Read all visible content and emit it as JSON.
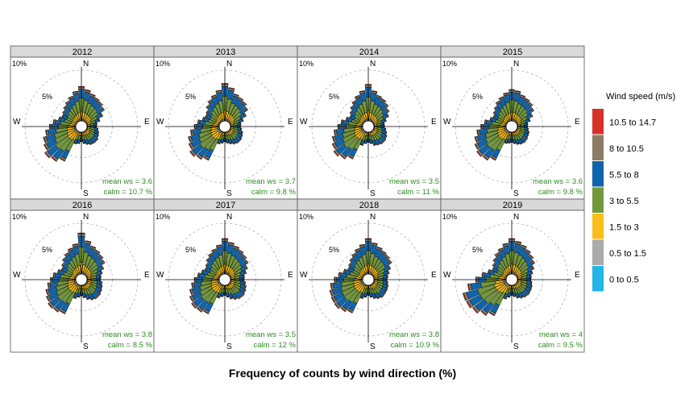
{
  "chart_data": {
    "type": "polar-stacked-bar (wind rose)",
    "xlabel": "Frequency of counts by wind direction (%)",
    "legend": {
      "title": "Wind speed (m/s)",
      "placement": "right",
      "bins": [
        {
          "label": "0 to 0.5",
          "color": "#22b5e6"
        },
        {
          "label": "0.5 to 1.5",
          "color": "#ababab"
        },
        {
          "label": "1.5 to 3",
          "color": "#fbbd19"
        },
        {
          "label": "3 to 5.5",
          "color": "#73983a"
        },
        {
          "label": "5.5 to 8",
          "color": "#0e64ad"
        },
        {
          "label": "8 to 10.5",
          "color": "#8c7c64"
        },
        {
          "label": "10.5 to 14.7",
          "color": "#d63228"
        }
      ]
    },
    "radial_axis": {
      "unit": "%",
      "ticks": [
        {
          "value": 5,
          "label": "5%"
        },
        {
          "value": 10,
          "label": "10%"
        }
      ],
      "max": 10
    },
    "compass_labels": {
      "N": "N",
      "E": "E",
      "S": "S",
      "W": "W"
    },
    "directions_deg": [
      0,
      10,
      20,
      30,
      40,
      50,
      60,
      70,
      80,
      90,
      100,
      110,
      120,
      130,
      140,
      150,
      160,
      170,
      180,
      190,
      200,
      210,
      220,
      230,
      240,
      250,
      260,
      270,
      280,
      290,
      300,
      310,
      320,
      330,
      340,
      350
    ],
    "panels": [
      {
        "year": "2012",
        "mean_ws_label": "mean ws =",
        "mean_ws": "3.6",
        "calm_label": "calm =",
        "calm": "10.7 %",
        "totals": [
          6.8,
          6.2,
          5.6,
          5.2,
          4.9,
          4.5,
          3.6,
          2.7,
          2.0,
          1.9,
          2.2,
          2.5,
          2.7,
          3.0,
          3.0,
          2.9,
          2.6,
          2.3,
          1.9,
          2.3,
          2.5,
          6.5,
          7.4,
          7.8,
          7.1,
          6.7,
          6.0,
          5.2,
          4.5,
          3.6,
          3.2,
          3.5,
          4.0,
          4.5,
          5.1,
          5.9
        ]
      },
      {
        "year": "2013",
        "mean_ws_label": "mean ws =",
        "mean_ws": "3.7",
        "calm_label": "calm =",
        "calm": "9.8 %",
        "totals": [
          7.4,
          6.6,
          5.6,
          5.3,
          5.0,
          4.5,
          3.6,
          2.7,
          2.1,
          2.0,
          2.2,
          2.6,
          2.8,
          3.0,
          3.0,
          2.8,
          2.5,
          2.2,
          1.9,
          2.2,
          2.5,
          6.3,
          6.9,
          7.4,
          6.8,
          6.4,
          5.7,
          4.9,
          4.3,
          3.5,
          3.2,
          3.5,
          4.2,
          4.8,
          5.4,
          6.1
        ]
      },
      {
        "year": "2014",
        "mean_ws_label": "mean ws =",
        "mean_ws": "3.5",
        "calm_label": "calm =",
        "calm": "11 %",
        "totals": [
          7.2,
          6.0,
          5.3,
          5.0,
          4.6,
          4.0,
          3.4,
          2.6,
          2.1,
          2.1,
          2.4,
          2.7,
          3.0,
          3.2,
          3.2,
          3.0,
          2.8,
          2.3,
          2.0,
          2.3,
          2.8,
          6.0,
          6.8,
          7.3,
          6.8,
          6.3,
          5.7,
          4.9,
          4.3,
          3.5,
          3.0,
          3.4,
          4.0,
          4.6,
          5.3,
          6.0
        ]
      },
      {
        "year": "2015",
        "mean_ws_label": "mean ws =",
        "mean_ws": "3.6",
        "calm_label": "calm =",
        "calm": "9.8 %",
        "totals": [
          6.2,
          6.0,
          5.4,
          5.1,
          4.8,
          4.3,
          3.5,
          2.7,
          2.1,
          2.0,
          2.2,
          2.5,
          2.6,
          2.8,
          2.9,
          2.8,
          2.6,
          2.3,
          2.0,
          2.2,
          2.4,
          6.3,
          7.1,
          7.4,
          7.0,
          6.5,
          5.8,
          5.0,
          4.3,
          3.4,
          3.0,
          3.4,
          3.9,
          4.5,
          5.0,
          5.6
        ]
      },
      {
        "year": "2016",
        "mean_ws_label": "mean ws =",
        "mean_ws": "3.8",
        "calm_label": "calm =",
        "calm": "8.5 %",
        "totals": [
          8.1,
          6.6,
          5.8,
          5.4,
          5.0,
          4.6,
          3.8,
          3.2,
          2.8,
          2.7,
          3.0,
          3.2,
          3.4,
          3.6,
          3.6,
          3.4,
          3.0,
          2.5,
          2.1,
          2.4,
          2.8,
          6.4,
          6.8,
          7.0,
          6.6,
          6.2,
          5.6,
          5.0,
          4.5,
          3.8,
          3.3,
          3.7,
          4.3,
          4.8,
          5.4,
          6.0
        ]
      },
      {
        "year": "2017",
        "mean_ws_label": "mean ws =",
        "mean_ws": "3.5",
        "calm_label": "calm =",
        "calm": "12 %",
        "totals": [
          7.0,
          6.3,
          5.8,
          5.4,
          5.0,
          4.6,
          3.9,
          3.3,
          2.8,
          2.7,
          3.0,
          3.3,
          3.5,
          3.7,
          3.6,
          3.3,
          2.9,
          2.4,
          2.0,
          2.3,
          2.7,
          6.4,
          6.8,
          7.0,
          6.6,
          6.1,
          5.5,
          4.9,
          4.3,
          3.7,
          3.3,
          3.6,
          4.2,
          4.7,
          5.2,
          5.8
        ]
      },
      {
        "year": "2018",
        "mean_ws_label": "mean ws =",
        "mean_ws": "3.8",
        "calm_label": "calm =",
        "calm": "10.9 %",
        "totals": [
          7.0,
          6.2,
          5.6,
          5.2,
          4.9,
          4.6,
          3.8,
          3.2,
          2.8,
          2.6,
          2.8,
          3.0,
          3.1,
          3.2,
          3.3,
          3.1,
          2.8,
          2.4,
          2.0,
          2.4,
          2.8,
          6.2,
          6.7,
          7.1,
          7.0,
          6.8,
          6.4,
          5.6,
          4.8,
          4.0,
          3.4,
          3.7,
          4.2,
          4.7,
          5.3,
          5.9
        ]
      },
      {
        "year": "2019",
        "mean_ws_label": "mean ws =",
        "mean_ws": "4",
        "calm_label": "calm =",
        "calm": "9.5 %",
        "totals": [
          7.0,
          6.5,
          6.0,
          5.5,
          5.0,
          4.5,
          3.8,
          3.2,
          2.8,
          2.7,
          2.9,
          3.1,
          3.2,
          3.3,
          3.2,
          3.0,
          2.7,
          2.3,
          2.0,
          2.4,
          2.9,
          6.8,
          7.6,
          8.4,
          8.8,
          8.9,
          7.6,
          6.0,
          4.8,
          3.8,
          3.2,
          3.6,
          4.2,
          4.8,
          5.4,
          6.1
        ]
      }
    ],
    "speed_shares": [
      0.0,
      0.06,
      0.22,
      0.38,
      0.26,
      0.06,
      0.02
    ]
  }
}
